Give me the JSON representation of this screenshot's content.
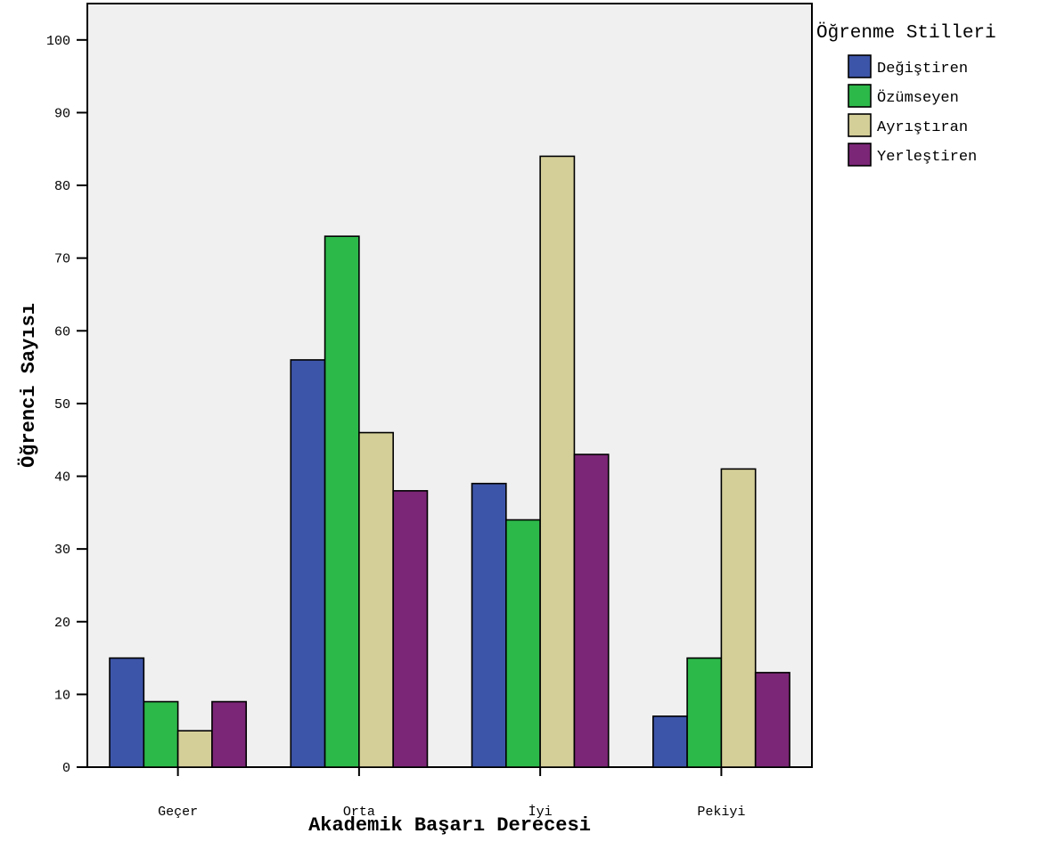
{
  "chart_data": {
    "type": "bar",
    "xlabel": "Akademik Başarı Derecesi",
    "ylabel": "Öğrenci Sayısı",
    "ylim": [
      0,
      105
    ],
    "yticks": [
      0,
      10,
      20,
      30,
      40,
      50,
      60,
      70,
      80,
      90,
      100
    ],
    "categories": [
      "Geçer",
      "Orta",
      "İyi",
      "Pekiyi"
    ],
    "legend_title": "Öğrenme Stilleri",
    "legend_position": "right",
    "grid": false,
    "series": [
      {
        "name": "Değiştiren",
        "color": "#3d55a8",
        "values": [
          15,
          56,
          39,
          7
        ]
      },
      {
        "name": "Özümseyen",
        "color": "#2db84a",
        "values": [
          9,
          73,
          34,
          15
        ]
      },
      {
        "name": "Ayrıştıran",
        "color": "#d4ce98",
        "values": [
          5,
          46,
          84,
          41
        ]
      },
      {
        "name": "Yerleştiren",
        "color": "#7b2676",
        "values": [
          9,
          38,
          43,
          13
        ]
      }
    ],
    "plot_background": "#f0f0f0"
  }
}
